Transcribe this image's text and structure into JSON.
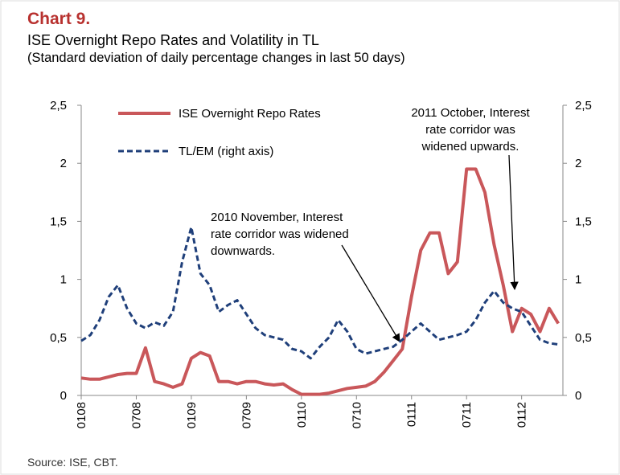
{
  "chart_data": {
    "type": "line",
    "title": "Chart 9.",
    "subtitle": "ISE Overnight Repo Rates and Volatility in TL",
    "subtitle2": "(Standard deviation of daily percentage changes in last 50 days)",
    "source": "Source: ISE, CBT.",
    "x": [
      0,
      1,
      2,
      3,
      4,
      5,
      6,
      7,
      8,
      9,
      10,
      11,
      12,
      13,
      14,
      15,
      16,
      17,
      18,
      19,
      20,
      21,
      22,
      23,
      24,
      25,
      26,
      27,
      28,
      29,
      30,
      31,
      32,
      33,
      34,
      35,
      36,
      37,
      38,
      39,
      40,
      41,
      42,
      43,
      44,
      45,
      46,
      47,
      48,
      49,
      50,
      51,
      52
    ],
    "xlim": [
      0,
      52.5
    ],
    "xticks": [
      {
        "value": 0,
        "label": "0108"
      },
      {
        "value": 6,
        "label": "0708"
      },
      {
        "value": 12,
        "label": "0109"
      },
      {
        "value": 18,
        "label": "0709"
      },
      {
        "value": 24,
        "label": "0110"
      },
      {
        "value": 30,
        "label": "0710"
      },
      {
        "value": 36,
        "label": "0111"
      },
      {
        "value": 42,
        "label": "0711"
      },
      {
        "value": 48,
        "label": "0112"
      }
    ],
    "ylim": [
      0,
      2.5
    ],
    "yticks": [
      0,
      {
        "value": 0.5,
        "label": "0,5"
      },
      1,
      {
        "value": 1.5,
        "label": "1,5"
      },
      2,
      {
        "value": 2.5,
        "label": "2,5"
      }
    ],
    "y2lim": [
      0,
      2.5
    ],
    "y2ticks": [
      0,
      {
        "value": 0.5,
        "label": "0,5"
      },
      1,
      {
        "value": 1.5,
        "label": "1,5"
      },
      2,
      {
        "value": 2.5,
        "label": "2,5"
      }
    ],
    "series": [
      {
        "name": "ISE Overnight Repo Rates",
        "color": "#c9575a",
        "dashed": false,
        "values": [
          0.15,
          0.14,
          0.14,
          0.16,
          0.18,
          0.19,
          0.19,
          0.41,
          0.12,
          0.1,
          0.07,
          0.1,
          0.32,
          0.37,
          0.34,
          0.12,
          0.12,
          0.1,
          0.12,
          0.12,
          0.1,
          0.09,
          0.1,
          0.05,
          0.01,
          0.01,
          0.01,
          0.02,
          0.04,
          0.06,
          0.07,
          0.08,
          0.12,
          0.2,
          0.3,
          0.4,
          0.85,
          1.25,
          1.4,
          1.4,
          1.05,
          1.15,
          1.95,
          1.95,
          1.75,
          1.3,
          0.95,
          0.55,
          0.75,
          0.7,
          0.55,
          0.75,
          0.62
        ]
      },
      {
        "name": "TL/EM (right axis)",
        "color": "#1f3f7a",
        "dashed": true,
        "axis": "y2",
        "values": [
          0.47,
          0.52,
          0.65,
          0.85,
          0.95,
          0.75,
          0.62,
          0.58,
          0.63,
          0.6,
          0.72,
          1.15,
          1.45,
          1.05,
          0.95,
          0.72,
          0.78,
          0.82,
          0.7,
          0.58,
          0.52,
          0.5,
          0.48,
          0.4,
          0.38,
          0.32,
          0.42,
          0.5,
          0.65,
          0.55,
          0.4,
          0.36,
          0.38,
          0.4,
          0.42,
          0.48,
          0.55,
          0.62,
          0.55,
          0.48,
          0.5,
          0.52,
          0.55,
          0.65,
          0.8,
          0.9,
          0.8,
          0.75,
          0.72,
          0.6,
          0.48,
          0.45,
          0.44
        ]
      }
    ],
    "annotations": [
      {
        "lines": [
          "2010 November, Interest",
          "rate corridor was widened",
          "downwards."
        ]
      },
      {
        "lines": [
          "2011 October, Interest",
          "rate corridor was",
          "widened upwards."
        ]
      }
    ]
  }
}
